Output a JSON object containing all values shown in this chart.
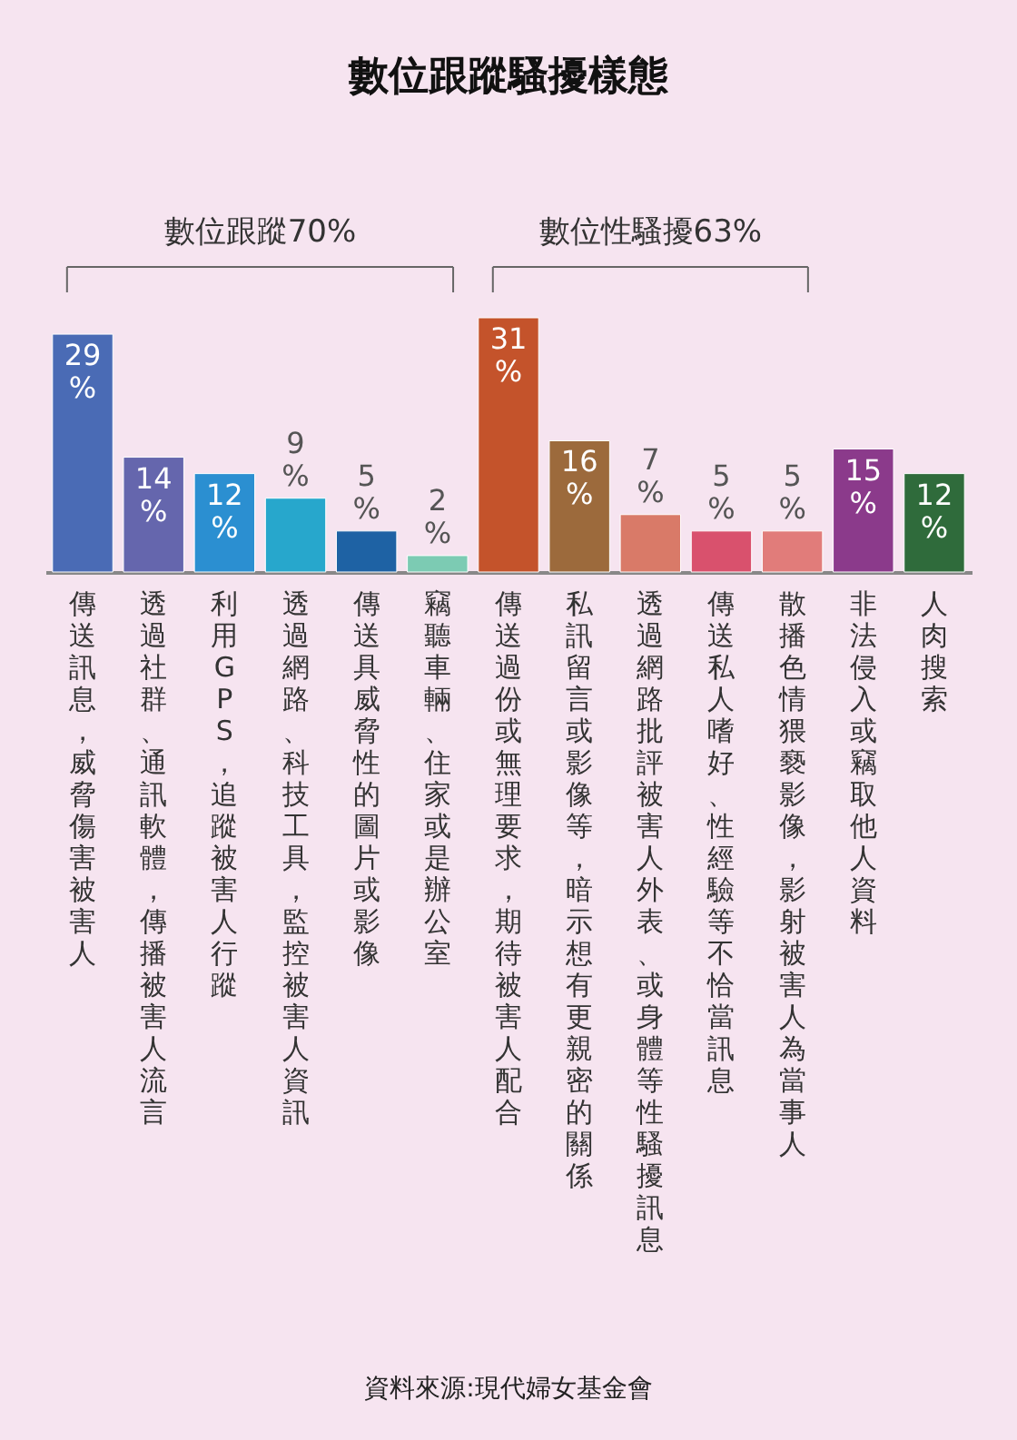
{
  "chart_data": {
    "type": "bar",
    "title": "數位跟蹤騷擾樣態",
    "categories": [
      "傳送訊息，威脅傷害被害人",
      "透過社群、通訊軟體，傳播被害人流言",
      "利用GPS，追蹤被害人行蹤",
      "透過網路、科技工具，監控被害人資訊",
      "傳送具威脅性的圖片或影像",
      "竊聽車輛、住家或是辦公室",
      "傳送過份或無理要求，期待被害人配合",
      "私訊留言或影像等，暗示想有更親密的關係",
      "透過網路批評被害人外表、或身體等性騷擾訊息",
      "傳送私人嗜好、性經驗等不恰當訊息",
      "散播色情猥褻影像，影射被害人為當事人",
      "非法侵入或竊取他人資料",
      "人肉搜索"
    ],
    "values": [
      29,
      14,
      12,
      9,
      5,
      2,
      31,
      16,
      7,
      5,
      5,
      15,
      12
    ],
    "value_labels": [
      "29%",
      "14%",
      "12%",
      "9%",
      "5%",
      "2%",
      "31%",
      "16%",
      "7%",
      "5%",
      "5%",
      "15%",
      "12%"
    ],
    "colors": [
      "#4a6bb5",
      "#6566ad",
      "#2b8fd1",
      "#27a7cc",
      "#1e62a4",
      "#7ccbb3",
      "#c4532b",
      "#9c6a3c",
      "#d97a68",
      "#d9516d",
      "#e17c7a",
      "#8b3a8b",
      "#2f6b3b"
    ],
    "annotations": [
      "數位跟蹤70%",
      "數位性騷擾63%",
      "資料來源:現代婦女基金會"
    ]
  }
}
